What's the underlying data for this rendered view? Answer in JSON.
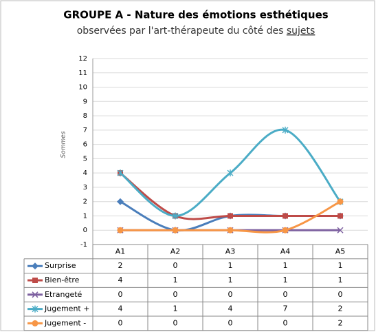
{
  "chart_data": {
    "type": "line",
    "smooth": true,
    "title": "GROUPE A - Nature des émotions esthétiques",
    "subtitle": "observées par l'art-thérapeute du côté des ",
    "subtitle_underlined": "sujets",
    "y_label": "Sommes",
    "categories": [
      "A1",
      "A2",
      "A3",
      "A4",
      "A5"
    ],
    "ylim": [
      -1,
      12
    ],
    "yticks": [
      -1,
      0,
      1,
      2,
      3,
      4,
      5,
      6,
      7,
      8,
      9,
      10,
      11,
      12
    ],
    "grid": true,
    "series": [
      {
        "name": "Surprise",
        "color": "#4a7ebb",
        "marker": "diamond",
        "values": [
          2,
          0,
          1,
          1,
          1
        ]
      },
      {
        "name": "Bien-être",
        "color": "#be4b48",
        "marker": "square",
        "values": [
          4,
          1,
          1,
          1,
          1
        ]
      },
      {
        "name": "Etrangeté",
        "color": "#7d60a0",
        "marker": "x",
        "values": [
          0,
          0,
          0,
          0,
          0
        ]
      },
      {
        "name": "Jugement +",
        "color": "#4bacc6",
        "marker": "asterisk",
        "values": [
          4,
          1,
          4,
          7,
          2
        ]
      },
      {
        "name": "Jugement -",
        "color": "#f79646",
        "marker": "circle",
        "values": [
          0,
          0,
          0,
          0,
          2
        ]
      }
    ]
  }
}
